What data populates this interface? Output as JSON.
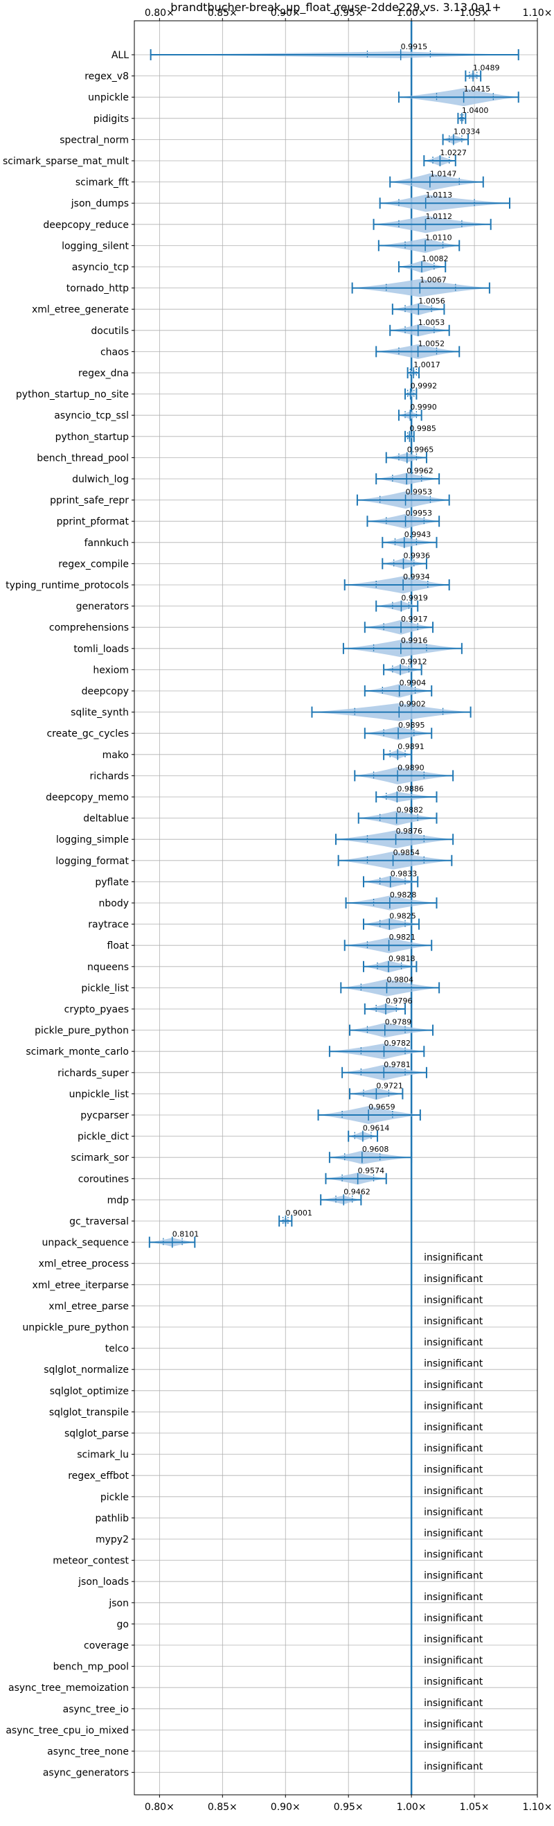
{
  "chart_data": {
    "type": "violin",
    "title": "brandtbucher-break_up_float_reuse-2dde229 vs. 3.13.0a1+",
    "xlim": [
      0.78,
      1.1
    ],
    "x_ticks": [
      0.8,
      0.85,
      0.9,
      0.95,
      1.0,
      1.05,
      1.1
    ],
    "x_tick_labels": [
      "0.80×",
      "0.85×",
      "0.90×",
      "0.95×",
      "1.00×",
      "1.05×",
      "1.10×"
    ],
    "reference_line": 1.0,
    "grid": true,
    "insignificant_label": "insignificant",
    "colors": {
      "violin": "#a9c8e6",
      "line": "#1f77b4",
      "grid": "#b0b0b0"
    },
    "benchmarks": [
      {
        "name": "ALL",
        "value": 0.9915,
        "label": "0.9915",
        "min": 0.793,
        "max": 1.085,
        "q1": 0.965,
        "q3": 1.015,
        "spread": 0.005
      },
      {
        "name": "regex_v8",
        "value": 1.0489,
        "label": "1.0489",
        "min": 1.043,
        "max": 1.055,
        "q1": 1.046,
        "q3": 1.052,
        "spread": 0.005
      },
      {
        "name": "unpickle",
        "value": 1.0415,
        "label": "1.0415",
        "min": 0.99,
        "max": 1.085,
        "q1": 1.02,
        "q3": 1.065,
        "spread": 0.035
      },
      {
        "name": "pidigits",
        "value": 1.04,
        "label": "1.0400",
        "min": 1.037,
        "max": 1.043,
        "q1": 1.039,
        "q3": 1.041,
        "spread": 0.003
      },
      {
        "name": "spectral_norm",
        "value": 1.0334,
        "label": "1.0334",
        "min": 1.025,
        "max": 1.045,
        "q1": 1.03,
        "q3": 1.04,
        "spread": 0.01
      },
      {
        "name": "scimark_sparse_mat_mult",
        "value": 1.0227,
        "label": "1.0227",
        "min": 1.01,
        "max": 1.035,
        "q1": 1.017,
        "q3": 1.03,
        "spread": 0.012
      },
      {
        "name": "scimark_fft",
        "value": 1.0147,
        "label": "1.0147",
        "min": 0.983,
        "max": 1.057,
        "q1": 1.0,
        "q3": 1.038,
        "spread": 0.025
      },
      {
        "name": "json_dumps",
        "value": 1.0113,
        "label": "1.0113",
        "min": 0.975,
        "max": 1.078,
        "q1": 0.99,
        "q3": 1.05,
        "spread": 0.025
      },
      {
        "name": "deepcopy_reduce",
        "value": 1.0112,
        "label": "1.0112",
        "min": 0.97,
        "max": 1.063,
        "q1": 0.99,
        "q3": 1.04,
        "spread": 0.025
      },
      {
        "name": "logging_silent",
        "value": 1.011,
        "label": "1.0110",
        "min": 0.974,
        "max": 1.038,
        "q1": 0.995,
        "q3": 1.025,
        "spread": 0.02
      },
      {
        "name": "asyncio_tcp",
        "value": 1.0082,
        "label": "1.0082",
        "min": 0.99,
        "max": 1.027,
        "q1": 1.0,
        "q3": 1.018,
        "spread": 0.015
      },
      {
        "name": "tornado_http",
        "value": 1.0067,
        "label": "1.0067",
        "min": 0.953,
        "max": 1.062,
        "q1": 0.98,
        "q3": 1.035,
        "spread": 0.03
      },
      {
        "name": "xml_etree_generate",
        "value": 1.0056,
        "label": "1.0056",
        "min": 0.985,
        "max": 1.026,
        "q1": 0.995,
        "q3": 1.016,
        "spread": 0.015
      },
      {
        "name": "docutils",
        "value": 1.0053,
        "label": "1.0053",
        "min": 0.983,
        "max": 1.03,
        "q1": 0.995,
        "q3": 1.018,
        "spread": 0.015
      },
      {
        "name": "chaos",
        "value": 1.0052,
        "label": "1.0052",
        "min": 0.972,
        "max": 1.038,
        "q1": 0.99,
        "q3": 1.02,
        "spread": 0.02
      },
      {
        "name": "regex_dna",
        "value": 1.0017,
        "label": "1.0017",
        "min": 0.997,
        "max": 1.006,
        "q1": 0.999,
        "q3": 1.004,
        "spread": 0.004
      },
      {
        "name": "python_startup_no_site",
        "value": 0.9992,
        "label": "0.9992",
        "min": 0.995,
        "max": 1.004,
        "q1": 0.997,
        "q3": 1.002,
        "spread": 0.004
      },
      {
        "name": "asyncio_tcp_ssl",
        "value": 0.999,
        "label": "0.9990",
        "min": 0.99,
        "max": 1.008,
        "q1": 0.995,
        "q3": 1.004,
        "spread": 0.007
      },
      {
        "name": "python_startup",
        "value": 0.9985,
        "label": "0.9985",
        "min": 0.995,
        "max": 1.002,
        "q1": 0.997,
        "q3": 1.0,
        "spread": 0.004
      },
      {
        "name": "bench_thread_pool",
        "value": 0.9965,
        "label": "0.9965",
        "min": 0.98,
        "max": 1.012,
        "q1": 0.99,
        "q3": 1.004,
        "spread": 0.01
      },
      {
        "name": "dulwich_log",
        "value": 0.9962,
        "label": "0.9962",
        "min": 0.972,
        "max": 1.022,
        "q1": 0.985,
        "q3": 1.008,
        "spread": 0.015
      },
      {
        "name": "pprint_safe_repr",
        "value": 0.9953,
        "label": "0.9953",
        "min": 0.957,
        "max": 1.03,
        "q1": 0.975,
        "q3": 1.015,
        "spread": 0.025
      },
      {
        "name": "pprint_pformat",
        "value": 0.9953,
        "label": "0.9953",
        "min": 0.965,
        "max": 1.022,
        "q1": 0.98,
        "q3": 1.01,
        "spread": 0.02
      },
      {
        "name": "fannkuch",
        "value": 0.9943,
        "label": "0.9943",
        "min": 0.977,
        "max": 1.02,
        "q1": 0.987,
        "q3": 1.004,
        "spread": 0.012
      },
      {
        "name": "regex_compile",
        "value": 0.9936,
        "label": "0.9936",
        "min": 0.977,
        "max": 1.012,
        "q1": 0.986,
        "q3": 1.002,
        "spread": 0.012
      },
      {
        "name": "typing_runtime_protocols",
        "value": 0.9934,
        "label": "0.9934",
        "min": 0.947,
        "max": 1.03,
        "q1": 0.972,
        "q3": 1.013,
        "spread": 0.025
      },
      {
        "name": "generators",
        "value": 0.9919,
        "label": "0.9919",
        "min": 0.972,
        "max": 1.005,
        "q1": 0.985,
        "q3": 0.998,
        "spread": 0.012
      },
      {
        "name": "comprehensions",
        "value": 0.9917,
        "label": "0.9917",
        "min": 0.963,
        "max": 1.017,
        "q1": 0.978,
        "q3": 1.005,
        "spread": 0.02
      },
      {
        "name": "tomli_loads",
        "value": 0.9916,
        "label": "0.9916",
        "min": 0.946,
        "max": 1.04,
        "q1": 0.97,
        "q3": 1.012,
        "spread": 0.025
      },
      {
        "name": "hexiom",
        "value": 0.9912,
        "label": "0.9912",
        "min": 0.978,
        "max": 1.008,
        "q1": 0.985,
        "q3": 0.998,
        "spread": 0.012
      },
      {
        "name": "deepcopy",
        "value": 0.9904,
        "label": "0.9904",
        "min": 0.963,
        "max": 1.016,
        "q1": 0.977,
        "q3": 1.003,
        "spread": 0.018
      },
      {
        "name": "sqlite_synth",
        "value": 0.9902,
        "label": "0.9902",
        "min": 0.921,
        "max": 1.047,
        "q1": 0.955,
        "q3": 1.025,
        "spread": 0.035
      },
      {
        "name": "create_gc_cycles",
        "value": 0.9895,
        "label": "0.9895",
        "min": 0.963,
        "max": 1.016,
        "q1": 0.978,
        "q3": 1.002,
        "spread": 0.018
      },
      {
        "name": "mako",
        "value": 0.9891,
        "label": "0.9891",
        "min": 0.978,
        "max": 1.0,
        "q1": 0.983,
        "q3": 0.995,
        "spread": 0.01
      },
      {
        "name": "richards",
        "value": 0.989,
        "label": "0.9890",
        "min": 0.955,
        "max": 1.033,
        "q1": 0.97,
        "q3": 1.01,
        "spread": 0.025
      },
      {
        "name": "deepcopy_memo",
        "value": 0.9886,
        "label": "0.9886",
        "min": 0.972,
        "max": 1.02,
        "q1": 0.98,
        "q3": 1.0,
        "spread": 0.012
      },
      {
        "name": "deltablue",
        "value": 0.9882,
        "label": "0.9882",
        "min": 0.958,
        "max": 1.02,
        "q1": 0.975,
        "q3": 1.005,
        "spread": 0.02
      },
      {
        "name": "logging_simple",
        "value": 0.9876,
        "label": "0.9876",
        "min": 0.94,
        "max": 1.033,
        "q1": 0.965,
        "q3": 1.01,
        "spread": 0.028
      },
      {
        "name": "logging_format",
        "value": 0.9854,
        "label": "0.9854",
        "min": 0.942,
        "max": 1.032,
        "q1": 0.965,
        "q3": 1.01,
        "spread": 0.028
      },
      {
        "name": "pyflate",
        "value": 0.9833,
        "label": "0.9833",
        "min": 0.962,
        "max": 1.005,
        "q1": 0.975,
        "q3": 0.995,
        "spread": 0.015
      },
      {
        "name": "nbody",
        "value": 0.9828,
        "label": "0.9828",
        "min": 0.948,
        "max": 1.02,
        "q1": 0.97,
        "q3": 1.0,
        "spread": 0.02
      },
      {
        "name": "raytrace",
        "value": 0.9825,
        "label": "0.9825",
        "min": 0.962,
        "max": 1.006,
        "q1": 0.975,
        "q3": 0.995,
        "spread": 0.015
      },
      {
        "name": "float",
        "value": 0.9821,
        "label": "0.9821",
        "min": 0.947,
        "max": 1.016,
        "q1": 0.965,
        "q3": 1.0,
        "spread": 0.022
      },
      {
        "name": "nqueens",
        "value": 0.9818,
        "label": "0.9818",
        "min": 0.962,
        "max": 1.004,
        "q1": 0.973,
        "q3": 0.992,
        "spread": 0.015
      },
      {
        "name": "pickle_list",
        "value": 0.9804,
        "label": "0.9804",
        "min": 0.944,
        "max": 1.022,
        "q1": 0.96,
        "q3": 1.0,
        "spread": 0.025
      },
      {
        "name": "crypto_pyaes",
        "value": 0.9796,
        "label": "0.9796",
        "min": 0.963,
        "max": 0.995,
        "q1": 0.972,
        "q3": 0.988,
        "spread": 0.012
      },
      {
        "name": "pickle_pure_python",
        "value": 0.9789,
        "label": "0.9789",
        "min": 0.951,
        "max": 1.017,
        "q1": 0.965,
        "q3": 0.995,
        "spread": 0.02
      },
      {
        "name": "scimark_monte_carlo",
        "value": 0.9782,
        "label": "0.9782",
        "min": 0.935,
        "max": 1.01,
        "q1": 0.96,
        "q3": 0.995,
        "spread": 0.022
      },
      {
        "name": "richards_super",
        "value": 0.9781,
        "label": "0.9781",
        "min": 0.945,
        "max": 1.012,
        "q1": 0.96,
        "q3": 0.995,
        "spread": 0.022
      },
      {
        "name": "unpickle_list",
        "value": 0.9721,
        "label": "0.9721",
        "min": 0.951,
        "max": 0.993,
        "q1": 0.962,
        "q3": 0.982,
        "spread": 0.015
      },
      {
        "name": "pycparser",
        "value": 0.9659,
        "label": "0.9659",
        "min": 0.926,
        "max": 1.007,
        "q1": 0.945,
        "q3": 0.985,
        "spread": 0.028
      },
      {
        "name": "pickle_dict",
        "value": 0.9614,
        "label": "0.9614",
        "min": 0.95,
        "max": 0.973,
        "q1": 0.955,
        "q3": 0.968,
        "spread": 0.01
      },
      {
        "name": "scimark_sor",
        "value": 0.9608,
        "label": "0.9608",
        "min": 0.935,
        "max": 1.0,
        "q1": 0.947,
        "q3": 0.975,
        "spread": 0.018
      },
      {
        "name": "coroutines",
        "value": 0.9574,
        "label": "0.9574",
        "min": 0.932,
        "max": 0.98,
        "q1": 0.945,
        "q3": 0.97,
        "spread": 0.015
      },
      {
        "name": "mdp",
        "value": 0.9462,
        "label": "0.9462",
        "min": 0.928,
        "max": 0.96,
        "q1": 0.94,
        "q3": 0.953,
        "spread": 0.009
      },
      {
        "name": "gc_traversal",
        "value": 0.9001,
        "label": "0.9001",
        "min": 0.895,
        "max": 0.905,
        "q1": 0.898,
        "q3": 0.902,
        "spread": 0.004
      },
      {
        "name": "unpack_sequence",
        "value": 0.8101,
        "label": "0.8101",
        "min": 0.792,
        "max": 0.828,
        "q1": 0.803,
        "q3": 0.818,
        "spread": 0.009
      },
      {
        "name": "xml_etree_process",
        "insignificant": true
      },
      {
        "name": "xml_etree_iterparse",
        "insignificant": true
      },
      {
        "name": "xml_etree_parse",
        "insignificant": true
      },
      {
        "name": "unpickle_pure_python",
        "insignificant": true
      },
      {
        "name": "telco",
        "insignificant": true
      },
      {
        "name": "sqlglot_normalize",
        "insignificant": true
      },
      {
        "name": "sqlglot_optimize",
        "insignificant": true
      },
      {
        "name": "sqlglot_transpile",
        "insignificant": true
      },
      {
        "name": "sqlglot_parse",
        "insignificant": true
      },
      {
        "name": "scimark_lu",
        "insignificant": true
      },
      {
        "name": "regex_effbot",
        "insignificant": true
      },
      {
        "name": "pickle",
        "insignificant": true
      },
      {
        "name": "pathlib",
        "insignificant": true
      },
      {
        "name": "mypy2",
        "insignificant": true
      },
      {
        "name": "meteor_contest",
        "insignificant": true
      },
      {
        "name": "json_loads",
        "insignificant": true
      },
      {
        "name": "json",
        "insignificant": true
      },
      {
        "name": "go",
        "insignificant": true
      },
      {
        "name": "coverage",
        "insignificant": true
      },
      {
        "name": "bench_mp_pool",
        "insignificant": true
      },
      {
        "name": "async_tree_memoization",
        "insignificant": true
      },
      {
        "name": "async_tree_io",
        "insignificant": true
      },
      {
        "name": "async_tree_cpu_io_mixed",
        "insignificant": true
      },
      {
        "name": "async_tree_none",
        "insignificant": true
      },
      {
        "name": "async_generators",
        "insignificant": true
      }
    ]
  }
}
